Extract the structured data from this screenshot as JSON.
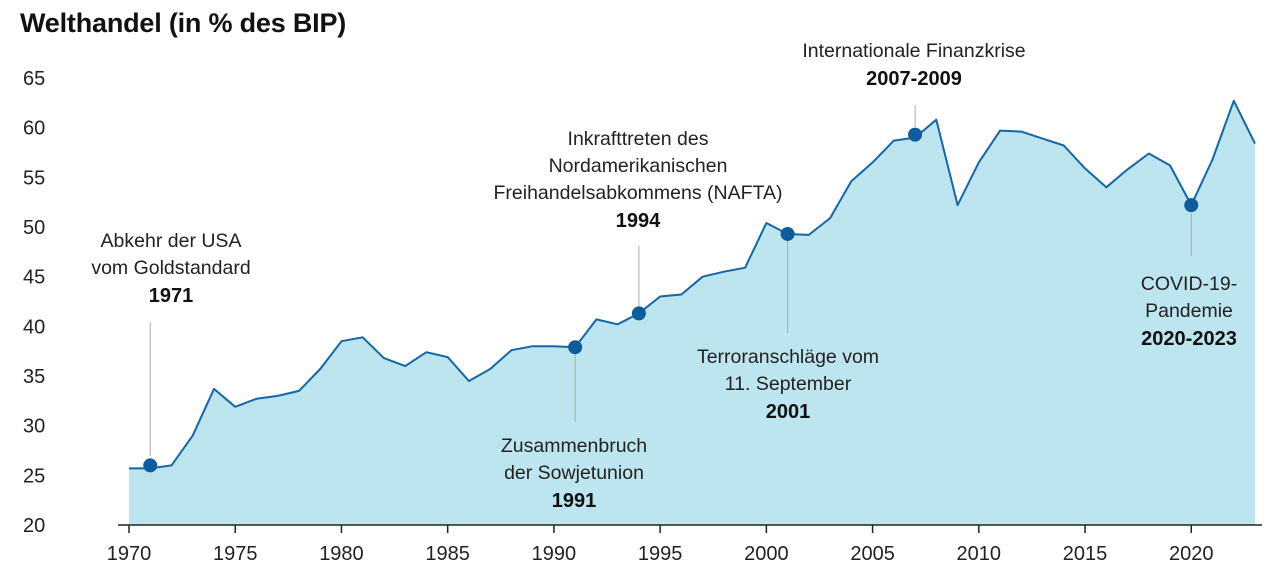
{
  "chart_data": {
    "type": "area",
    "title": "Welthandel (in % des BIP)",
    "xlabel": "",
    "ylabel": "",
    "xlim": [
      1970,
      2023
    ],
    "ylim": [
      20,
      65
    ],
    "y_ticks": [
      "20",
      "25",
      "30",
      "35",
      "40",
      "45",
      "50",
      "55",
      "60",
      "65"
    ],
    "x_ticks": [
      "1970",
      "1975",
      "1980",
      "1985",
      "1990",
      "1995",
      "2000",
      "2005",
      "2010",
      "2015",
      "2020"
    ],
    "grid": false,
    "colors": {
      "line": "#1466a7",
      "fill": "#bde5ef",
      "marker": "#0e5c9b",
      "leader": "#aaaaaa",
      "axis": "#222222"
    },
    "series": [
      {
        "x": [
          1970,
          1971,
          1972,
          1973,
          1974,
          1975,
          1976,
          1977,
          1978,
          1979,
          1980,
          1981,
          1982,
          1983,
          1984,
          1985,
          1986,
          1987,
          1988,
          1989,
          1990,
          1991,
          1992,
          1993,
          1994,
          1995,
          1996,
          1997,
          1998,
          1999,
          2000,
          2001,
          2002,
          2003,
          2004,
          2005,
          2006,
          2007,
          2008,
          2009,
          2010,
          2011,
          2012,
          2013,
          2014,
          2015,
          2016,
          2017,
          2018,
          2019,
          2020,
          2021,
          2022,
          2023
        ],
        "values": [
          25.7,
          25.7,
          26.0,
          29.0,
          33.7,
          31.9,
          32.7,
          33.0,
          33.5,
          35.7,
          38.5,
          38.9,
          36.8,
          36.0,
          37.4,
          36.9,
          34.5,
          35.7,
          37.6,
          38.0,
          38.0,
          37.9,
          40.7,
          40.2,
          41.3,
          43.0,
          43.2,
          45.0,
          45.5,
          45.9,
          50.4,
          49.3,
          49.2,
          50.9,
          54.6,
          56.5,
          58.7,
          59.0,
          60.8,
          52.2,
          56.5,
          59.7,
          59.6,
          58.9,
          58.2,
          55.9,
          54.0,
          55.8,
          57.4,
          56.2,
          52.2,
          56.8,
          62.7,
          58.4
        ]
      }
    ],
    "annotations": [
      {
        "year": 1971,
        "value": 26.0,
        "lines": [
          "Abkehr der USA",
          "vom Goldstandard"
        ],
        "year_label": "1971"
      },
      {
        "year": 1991,
        "value": 37.9,
        "lines": [
          "Zusammenbruch",
          "der Sowjetunion"
        ],
        "year_label": "1991"
      },
      {
        "year": 1994,
        "value": 41.3,
        "lines": [
          "Inkrafttreten des",
          "Nordamerikanischen",
          "Freihandelsabkommens (NAFTA)"
        ],
        "year_label": "1994"
      },
      {
        "year": 2001,
        "value": 49.3,
        "lines": [
          "Terroranschläge vom",
          "11. September"
        ],
        "year_label": "2001"
      },
      {
        "year": 2007,
        "value": 59.3,
        "lines": [
          "Internationale Finanzkrise"
        ],
        "year_label": "2007-2009"
      },
      {
        "year": 2020,
        "value": 52.2,
        "lines": [
          "COVID-19-",
          "Pandemie"
        ],
        "year_label": "2020-2023"
      }
    ]
  }
}
